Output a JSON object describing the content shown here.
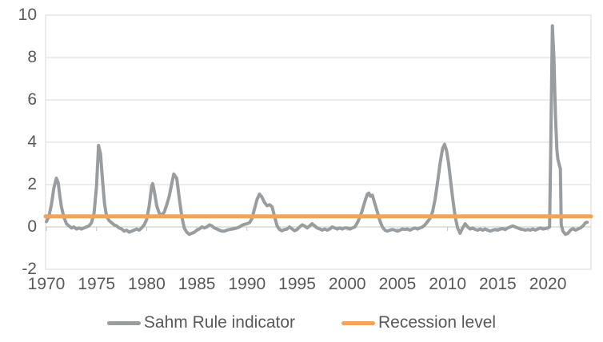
{
  "chart_data": {
    "type": "line",
    "title": "",
    "xlabel": "",
    "ylabel": "",
    "grid": true,
    "legend_position": "bottom",
    "x_range": [
      1969.92,
      2024.3
    ],
    "y_range": [
      -2,
      10
    ],
    "x_ticks": [
      "1970",
      "1975",
      "1980",
      "1985",
      "1990",
      "1995",
      "2000",
      "2005",
      "2010",
      "2015",
      "2020"
    ],
    "x_tick_years": [
      1970,
      1975,
      1980,
      1985,
      1990,
      1995,
      2000,
      2005,
      2010,
      2015,
      2020
    ],
    "y_ticks": [
      "10",
      "8",
      "6",
      "4",
      "2",
      "0",
      "-2"
    ],
    "y_tick_values": [
      10,
      8,
      6,
      4,
      2,
      0,
      -2
    ],
    "grid_color": "#D9D9D9",
    "axis_color": "#C6C6C6",
    "tick_label_color": "#595959",
    "series": [
      {
        "name": "Sahm Rule indicator",
        "color": "#9A9DA0",
        "width": 4,
        "points": [
          [
            1970.0,
            0.25
          ],
          [
            1970.25,
            0.5
          ],
          [
            1970.5,
            1.05
          ],
          [
            1970.75,
            1.85
          ],
          [
            1971.0,
            2.3
          ],
          [
            1971.17,
            2.1
          ],
          [
            1971.33,
            1.5
          ],
          [
            1971.5,
            0.95
          ],
          [
            1971.75,
            0.45
          ],
          [
            1972.0,
            0.15
          ],
          [
            1972.25,
            0.05
          ],
          [
            1972.5,
            -0.05
          ],
          [
            1972.75,
            0.0
          ],
          [
            1973.0,
            -0.1
          ],
          [
            1973.25,
            -0.05
          ],
          [
            1973.5,
            -0.1
          ],
          [
            1973.75,
            -0.05
          ],
          [
            1974.0,
            0.0
          ],
          [
            1974.25,
            0.05
          ],
          [
            1974.5,
            0.2
          ],
          [
            1974.75,
            0.65
          ],
          [
            1975.0,
            1.9
          ],
          [
            1975.2,
            3.85
          ],
          [
            1975.4,
            3.45
          ],
          [
            1975.6,
            2.2
          ],
          [
            1975.8,
            1.1
          ],
          [
            1976.0,
            0.5
          ],
          [
            1976.25,
            0.3
          ],
          [
            1976.5,
            0.2
          ],
          [
            1976.75,
            0.1
          ],
          [
            1977.0,
            0.05
          ],
          [
            1977.25,
            -0.05
          ],
          [
            1977.5,
            -0.1
          ],
          [
            1977.75,
            -0.2
          ],
          [
            1978.0,
            -0.15
          ],
          [
            1978.25,
            -0.25
          ],
          [
            1978.5,
            -0.2
          ],
          [
            1978.75,
            -0.15
          ],
          [
            1979.0,
            -0.1
          ],
          [
            1979.25,
            -0.15
          ],
          [
            1979.5,
            -0.05
          ],
          [
            1979.75,
            0.1
          ],
          [
            1980.0,
            0.35
          ],
          [
            1980.25,
            1.0
          ],
          [
            1980.5,
            1.95
          ],
          [
            1980.6,
            2.05
          ],
          [
            1980.75,
            1.7
          ],
          [
            1981.0,
            1.0
          ],
          [
            1981.25,
            0.65
          ],
          [
            1981.5,
            0.55
          ],
          [
            1981.75,
            0.7
          ],
          [
            1982.0,
            1.05
          ],
          [
            1982.25,
            1.45
          ],
          [
            1982.5,
            2.05
          ],
          [
            1982.7,
            2.5
          ],
          [
            1983.0,
            2.3
          ],
          [
            1983.25,
            1.35
          ],
          [
            1983.5,
            0.5
          ],
          [
            1983.75,
            -0.05
          ],
          [
            1984.0,
            -0.25
          ],
          [
            1984.25,
            -0.35
          ],
          [
            1984.5,
            -0.3
          ],
          [
            1984.75,
            -0.25
          ],
          [
            1985.0,
            -0.15
          ],
          [
            1985.25,
            -0.1
          ],
          [
            1985.5,
            0.0
          ],
          [
            1985.75,
            -0.05
          ],
          [
            1986.0,
            0.0
          ],
          [
            1986.25,
            0.1
          ],
          [
            1986.5,
            0.05
          ],
          [
            1986.75,
            -0.05
          ],
          [
            1987.0,
            -0.1
          ],
          [
            1987.25,
            -0.15
          ],
          [
            1987.5,
            -0.2
          ],
          [
            1987.75,
            -0.2
          ],
          [
            1988.0,
            -0.15
          ],
          [
            1988.25,
            -0.12
          ],
          [
            1988.5,
            -0.1
          ],
          [
            1988.75,
            -0.08
          ],
          [
            1989.0,
            -0.05
          ],
          [
            1989.25,
            0.0
          ],
          [
            1989.5,
            0.08
          ],
          [
            1989.75,
            0.12
          ],
          [
            1990.0,
            0.15
          ],
          [
            1990.25,
            0.2
          ],
          [
            1990.5,
            0.4
          ],
          [
            1990.75,
            0.85
          ],
          [
            1991.0,
            1.3
          ],
          [
            1991.25,
            1.55
          ],
          [
            1991.5,
            1.4
          ],
          [
            1991.75,
            1.15
          ],
          [
            1992.0,
            1.0
          ],
          [
            1992.25,
            1.05
          ],
          [
            1992.5,
            0.95
          ],
          [
            1992.75,
            0.5
          ],
          [
            1993.0,
            0.05
          ],
          [
            1993.25,
            -0.12
          ],
          [
            1993.5,
            -0.18
          ],
          [
            1993.75,
            -0.12
          ],
          [
            1994.0,
            -0.1
          ],
          [
            1994.25,
            0.0
          ],
          [
            1994.5,
            -0.1
          ],
          [
            1994.75,
            -0.18
          ],
          [
            1995.0,
            -0.12
          ],
          [
            1995.25,
            0.0
          ],
          [
            1995.5,
            0.1
          ],
          [
            1995.75,
            0.05
          ],
          [
            1996.0,
            -0.05
          ],
          [
            1996.25,
            0.05
          ],
          [
            1996.5,
            0.15
          ],
          [
            1996.75,
            0.05
          ],
          [
            1997.0,
            -0.05
          ],
          [
            1997.25,
            -0.1
          ],
          [
            1997.5,
            -0.15
          ],
          [
            1997.75,
            -0.1
          ],
          [
            1998.0,
            -0.15
          ],
          [
            1998.25,
            -0.1
          ],
          [
            1998.5,
            0.0
          ],
          [
            1998.75,
            -0.05
          ],
          [
            1999.0,
            -0.1
          ],
          [
            1999.25,
            -0.05
          ],
          [
            1999.5,
            -0.1
          ],
          [
            1999.75,
            -0.05
          ],
          [
            2000.0,
            -0.05
          ],
          [
            2000.25,
            -0.1
          ],
          [
            2000.5,
            -0.05
          ],
          [
            2000.75,
            0.0
          ],
          [
            2001.0,
            0.2
          ],
          [
            2001.25,
            0.45
          ],
          [
            2001.5,
            0.8
          ],
          [
            2001.75,
            1.2
          ],
          [
            2002.0,
            1.55
          ],
          [
            2002.15,
            1.6
          ],
          [
            2002.3,
            1.45
          ],
          [
            2002.5,
            1.5
          ],
          [
            2002.75,
            1.1
          ],
          [
            2003.0,
            0.7
          ],
          [
            2003.25,
            0.3
          ],
          [
            2003.5,
            0.0
          ],
          [
            2003.75,
            -0.15
          ],
          [
            2004.0,
            -0.2
          ],
          [
            2004.25,
            -0.15
          ],
          [
            2004.5,
            -0.12
          ],
          [
            2004.75,
            -0.15
          ],
          [
            2005.0,
            -0.2
          ],
          [
            2005.25,
            -0.15
          ],
          [
            2005.5,
            -0.1
          ],
          [
            2005.75,
            -0.12
          ],
          [
            2006.0,
            -0.1
          ],
          [
            2006.25,
            -0.15
          ],
          [
            2006.5,
            -0.1
          ],
          [
            2006.75,
            -0.05
          ],
          [
            2007.0,
            -0.1
          ],
          [
            2007.25,
            -0.05
          ],
          [
            2007.5,
            0.0
          ],
          [
            2007.75,
            0.1
          ],
          [
            2008.0,
            0.25
          ],
          [
            2008.25,
            0.4
          ],
          [
            2008.5,
            0.7
          ],
          [
            2008.75,
            1.3
          ],
          [
            2009.0,
            2.1
          ],
          [
            2009.25,
            3.0
          ],
          [
            2009.5,
            3.7
          ],
          [
            2009.7,
            3.9
          ],
          [
            2009.9,
            3.6
          ],
          [
            2010.1,
            3.0
          ],
          [
            2010.3,
            2.2
          ],
          [
            2010.5,
            1.4
          ],
          [
            2010.75,
            0.5
          ],
          [
            2011.0,
            -0.05
          ],
          [
            2011.25,
            -0.3
          ],
          [
            2011.5,
            -0.05
          ],
          [
            2011.75,
            0.15
          ],
          [
            2012.0,
            0.0
          ],
          [
            2012.25,
            -0.1
          ],
          [
            2012.5,
            -0.05
          ],
          [
            2012.75,
            -0.12
          ],
          [
            2013.0,
            -0.15
          ],
          [
            2013.25,
            -0.1
          ],
          [
            2013.5,
            -0.15
          ],
          [
            2013.75,
            -0.1
          ],
          [
            2014.0,
            -0.15
          ],
          [
            2014.25,
            -0.2
          ],
          [
            2014.5,
            -0.15
          ],
          [
            2014.75,
            -0.12
          ],
          [
            2015.0,
            -0.15
          ],
          [
            2015.25,
            -0.1
          ],
          [
            2015.5,
            -0.08
          ],
          [
            2015.75,
            -0.12
          ],
          [
            2016.0,
            -0.05
          ],
          [
            2016.25,
            0.0
          ],
          [
            2016.5,
            0.05
          ],
          [
            2016.75,
            0.0
          ],
          [
            2017.0,
            -0.05
          ],
          [
            2017.25,
            -0.1
          ],
          [
            2017.5,
            -0.12
          ],
          [
            2017.75,
            -0.15
          ],
          [
            2018.0,
            -0.12
          ],
          [
            2018.25,
            -0.15
          ],
          [
            2018.5,
            -0.1
          ],
          [
            2018.75,
            -0.15
          ],
          [
            2019.0,
            -0.1
          ],
          [
            2019.25,
            -0.05
          ],
          [
            2019.5,
            -0.1
          ],
          [
            2019.75,
            -0.08
          ],
          [
            2020.0,
            -0.05
          ],
          [
            2020.17,
            0.0
          ],
          [
            2020.3,
            4.1
          ],
          [
            2020.45,
            9.5
          ],
          [
            2020.6,
            8.0
          ],
          [
            2020.75,
            5.3
          ],
          [
            2020.9,
            3.6
          ],
          [
            2021.0,
            3.2
          ],
          [
            2021.15,
            2.9
          ],
          [
            2021.25,
            2.75
          ],
          [
            2021.33,
            0.1
          ],
          [
            2021.5,
            -0.2
          ],
          [
            2021.75,
            -0.35
          ],
          [
            2022.0,
            -0.3
          ],
          [
            2022.25,
            -0.15
          ],
          [
            2022.5,
            -0.08
          ],
          [
            2022.75,
            -0.15
          ],
          [
            2023.0,
            -0.1
          ],
          [
            2023.25,
            -0.05
          ],
          [
            2023.5,
            0.05
          ],
          [
            2023.75,
            0.2
          ],
          [
            2023.92,
            0.22
          ]
        ]
      },
      {
        "name": "Recession level",
        "color": "#F3A35A",
        "width": 5,
        "points": [
          [
            1969.92,
            0.5
          ],
          [
            2024.3,
            0.5
          ]
        ]
      }
    ]
  },
  "legend": {
    "items": [
      {
        "label": "Sahm Rule indicator",
        "color": "#9A9DA0"
      },
      {
        "label": "Recession level",
        "color": "#F3A35A"
      }
    ]
  }
}
